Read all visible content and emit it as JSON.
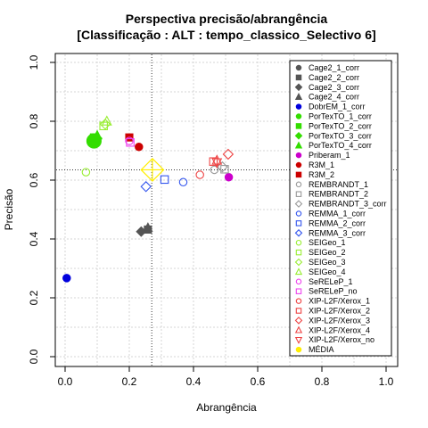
{
  "chart_data": {
    "type": "scatter",
    "title": "Perspectiva precisão/abrangência",
    "subtitle": "[Classificação : ALT : tempo_classico_Selectivo 6]",
    "xlabel": "Abrangência",
    "ylabel": "Precisão",
    "xlim": [
      0.0,
      1.0
    ],
    "ylim": [
      0.0,
      1.0
    ],
    "x_ticks": [
      "0.0",
      "0.2",
      "0.4",
      "0.6",
      "0.8",
      "1.0"
    ],
    "y_ticks": [
      "0.0",
      "0.2",
      "0.4",
      "0.6",
      "0.8",
      "1.0"
    ],
    "grid": true,
    "legend_position": "top-right",
    "reference_lines": {
      "x": 0.27,
      "y": 0.635
    },
    "series": [
      {
        "name": "Cage2_1_corr",
        "color": "#555555",
        "shape": "circle",
        "filled": true,
        "points": [
          [
            0.258,
            0.432
          ]
        ]
      },
      {
        "name": "Cage2_2_corr",
        "color": "#555555",
        "shape": "square",
        "filled": true,
        "points": [
          [
            0.258,
            0.432
          ]
        ]
      },
      {
        "name": "Cage2_3_corr",
        "color": "#555555",
        "shape": "diamond",
        "filled": true,
        "points": [
          [
            0.237,
            0.425
          ]
        ]
      },
      {
        "name": "Cage2_4_corr",
        "color": "#555555",
        "shape": "triangle",
        "filled": true,
        "points": [
          [
            0.258,
            0.438
          ]
        ]
      },
      {
        "name": "DobrEM_1_corr",
        "color": "#0000dd",
        "shape": "circle",
        "filled": true,
        "points": [
          [
            0.005,
            0.267
          ]
        ]
      },
      {
        "name": "PorTexTO_1_corr",
        "color": "#33dd00",
        "shape": "circle",
        "filled": true,
        "points": [
          [
            0.09,
            0.733
          ]
        ]
      },
      {
        "name": "PorTexTO_2_corr",
        "color": "#33dd00",
        "shape": "square",
        "filled": true,
        "points": [
          [
            0.09,
            0.745
          ]
        ]
      },
      {
        "name": "PorTexTO_3_corr",
        "color": "#33dd00",
        "shape": "diamond",
        "filled": true,
        "points": [
          [
            0.1,
            0.742
          ]
        ]
      },
      {
        "name": "PorTexTO_4_corr",
        "color": "#33dd00",
        "shape": "triangle",
        "filled": true,
        "points": [
          [
            0.1,
            0.752
          ]
        ]
      },
      {
        "name": "Priberam_1",
        "color": "#cc00cc",
        "shape": "circle",
        "filled": true,
        "points": [
          [
            0.51,
            0.61
          ]
        ]
      },
      {
        "name": "R3M_1",
        "color": "#cc0000",
        "shape": "circle",
        "filled": true,
        "points": [
          [
            0.23,
            0.713
          ]
        ]
      },
      {
        "name": "R3M_2",
        "color": "#cc0000",
        "shape": "square",
        "filled": true,
        "points": [
          [
            0.2,
            0.745
          ]
        ]
      },
      {
        "name": "REMBRANDT_1",
        "color": "#999999",
        "shape": "circle",
        "filled": false,
        "points": [
          [
            0.465,
            0.635
          ]
        ]
      },
      {
        "name": "REMBRANDT_2",
        "color": "#999999",
        "shape": "square",
        "filled": false,
        "points": [
          [
            0.497,
            0.637
          ]
        ]
      },
      {
        "name": "REMBRANDT_3_corr",
        "color": "#999999",
        "shape": "diamond",
        "filled": false,
        "points": [
          [
            0.49,
            0.645
          ]
        ]
      },
      {
        "name": "REMMA_1_corr",
        "color": "#3355ee",
        "shape": "circle",
        "filled": false,
        "points": [
          [
            0.368,
            0.593
          ]
        ]
      },
      {
        "name": "REMMA_2_corr",
        "color": "#3355ee",
        "shape": "square",
        "filled": false,
        "points": [
          [
            0.31,
            0.602
          ]
        ]
      },
      {
        "name": "REMMA_3_corr",
        "color": "#3355ee",
        "shape": "diamond",
        "filled": false,
        "points": [
          [
            0.252,
            0.578
          ]
        ]
      },
      {
        "name": "SEIGeo_1",
        "color": "#99ee33",
        "shape": "circle",
        "filled": false,
        "points": [
          [
            0.065,
            0.627
          ]
        ]
      },
      {
        "name": "SEIGeo_2",
        "color": "#99ee33",
        "shape": "square",
        "filled": false,
        "points": [
          [
            0.12,
            0.784
          ]
        ]
      },
      {
        "name": "SEIGeo_3",
        "color": "#99ee33",
        "shape": "diamond",
        "filled": false,
        "points": [
          [
            0.125,
            0.79
          ]
        ]
      },
      {
        "name": "SEIGeo_4",
        "color": "#99ee33",
        "shape": "triangle",
        "filled": false,
        "points": [
          [
            0.13,
            0.8
          ]
        ]
      },
      {
        "name": "SeRELeP_1",
        "color": "#ee44ee",
        "shape": "circle",
        "filled": false,
        "points": [
          [
            0.2,
            0.733
          ]
        ]
      },
      {
        "name": "SeRELeP_no",
        "color": "#ee44ee",
        "shape": "square",
        "filled": false,
        "points": [
          [
            0.203,
            0.728
          ]
        ]
      },
      {
        "name": "XIP-L2F/Xerox_1",
        "color": "#ee4444",
        "shape": "circle",
        "filled": false,
        "points": [
          [
            0.42,
            0.618
          ]
        ]
      },
      {
        "name": "XIP-L2F/Xerox_2",
        "color": "#ee4444",
        "shape": "square",
        "filled": false,
        "points": [
          [
            0.462,
            0.663
          ]
        ]
      },
      {
        "name": "XIP-L2F/Xerox_3",
        "color": "#ee4444",
        "shape": "diamond",
        "filled": false,
        "points": [
          [
            0.508,
            0.688
          ]
        ]
      },
      {
        "name": "XIP-L2F/Xerox_4",
        "color": "#ee4444",
        "shape": "triangle",
        "filled": false,
        "points": [
          [
            0.473,
            0.667
          ]
        ]
      },
      {
        "name": "XIP-L2F/Xerox_no",
        "color": "#ee4444",
        "shape": "triangle-down",
        "filled": false,
        "points": [
          [
            0.473,
            0.66
          ]
        ]
      },
      {
        "name": "MÉDIA",
        "color": "#ffee00",
        "shape": "cross-diamond",
        "filled": false,
        "points": [
          [
            0.272,
            0.635
          ]
        ]
      }
    ]
  }
}
